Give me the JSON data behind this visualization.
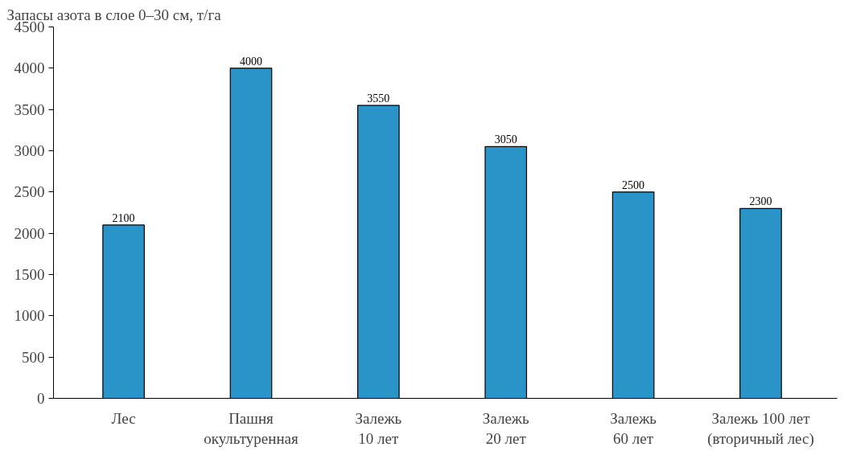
{
  "chart_data": {
    "type": "bar",
    "ylabel": "Запасы азота в слое 0–30 см, т/га",
    "categories": [
      "Лес",
      "Пашня\nокультуренная",
      "Залежь\n10 лет",
      "Залежь\n20 лет",
      "Залежь\n60 лет",
      "Залежь 100 лет\n(вторичный лес)"
    ],
    "values": [
      2100,
      4000,
      3550,
      3050,
      2500,
      2300
    ],
    "color": "#2a93c8",
    "ylim": [
      0,
      4500
    ],
    "yticks": [
      0,
      500,
      1000,
      1500,
      2000,
      2500,
      3000,
      3500,
      4000,
      4500
    ],
    "data_labels": true,
    "grid": false
  }
}
